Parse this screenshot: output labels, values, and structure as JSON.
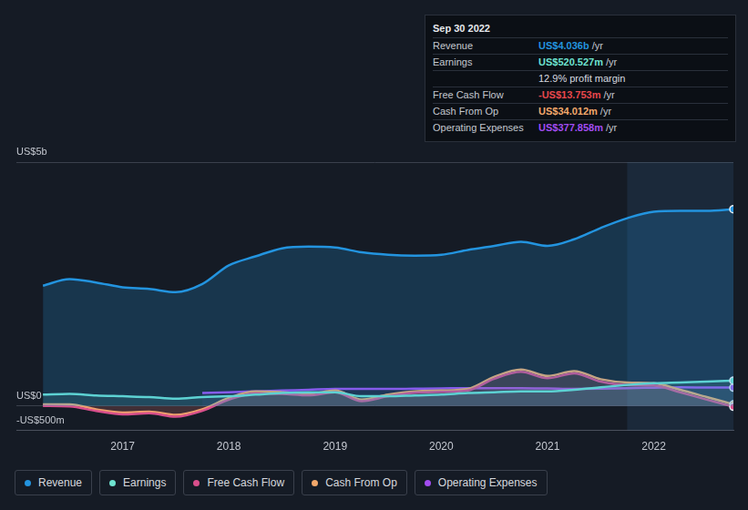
{
  "chart_data": {
    "type": "line",
    "x": [
      2016.25,
      2016.5,
      2016.75,
      2017,
      2017.25,
      2017.5,
      2017.75,
      2018,
      2018.25,
      2018.5,
      2018.75,
      2019,
      2019.25,
      2019.5,
      2019.75,
      2020,
      2020.25,
      2020.5,
      2020.75,
      2021,
      2021.25,
      2021.5,
      2021.75,
      2022,
      2022.25,
      2022.5,
      2022.75
    ],
    "xlim": [
      2016,
      2022.75
    ],
    "xticks": [
      2017,
      2018,
      2019,
      2020,
      2021,
      2022
    ],
    "ylim": [
      -500,
      5000
    ],
    "yticks": [
      {
        "value": 5000,
        "label": "US$5b"
      },
      {
        "value": 0,
        "label": "US$0"
      },
      {
        "value": -500,
        "label": "-US$500m"
      }
    ],
    "grid": true,
    "legend": "bottom",
    "highlight_x": [
      2021.75,
      2022.75
    ],
    "series": [
      {
        "name": "Revenue",
        "color": "#2394df",
        "values": [
          2467,
          2600,
          2533,
          2433,
          2400,
          2333,
          2500,
          2883,
          3067,
          3233,
          3267,
          3250,
          3150,
          3100,
          3083,
          3100,
          3200,
          3283,
          3367,
          3283,
          3417,
          3650,
          3850,
          3983,
          4000,
          4000,
          4036
        ]
      },
      {
        "name": "Earnings",
        "color": "#6ee3d0",
        "values": [
          233,
          250,
          217,
          200,
          183,
          150,
          183,
          200,
          233,
          267,
          283,
          283,
          200,
          200,
          217,
          233,
          267,
          283,
          300,
          300,
          333,
          383,
          433,
          467,
          483,
          500,
          521
        ]
      },
      {
        "name": "Free Cash Flow",
        "color": "#d94f8c",
        "values": [
          0,
          -10,
          -100,
          -170,
          -150,
          -220,
          -100,
          130,
          260,
          250,
          220,
          280,
          100,
          200,
          270,
          290,
          320,
          560,
          700,
          570,
          670,
          500,
          430,
          420,
          280,
          130,
          -14
        ]
      },
      {
        "name": "Cash From Op",
        "color": "#f2a86b",
        "values": [
          33,
          33,
          -67,
          -133,
          -117,
          -183,
          -67,
          167,
          300,
          283,
          250,
          317,
          133,
          233,
          300,
          317,
          350,
          600,
          750,
          617,
          717,
          550,
          483,
          467,
          333,
          183,
          34
        ]
      },
      {
        "name": "Operating Expenses",
        "color": "#a24cf0",
        "values": [
          null,
          null,
          null,
          null,
          null,
          null,
          267,
          283,
          300,
          317,
          333,
          350,
          350,
          350,
          355,
          360,
          367,
          367,
          367,
          360,
          350,
          355,
          367,
          375,
          383,
          380,
          378
        ]
      }
    ],
    "summary": {
      "date": "Sep 30 2022",
      "rows": [
        {
          "label": "Revenue",
          "value": "US$4.036b",
          "suffix": "/yr",
          "color": "#2394df"
        },
        {
          "label": "Earnings",
          "value": "US$520.527m",
          "suffix": "/yr",
          "color": "#6ee3d0"
        },
        {
          "text": "12.9% profit margin"
        },
        {
          "label": "Free Cash Flow",
          "value": "-US$13.753m",
          "suffix": "/yr",
          "color": "#e8474c"
        },
        {
          "label": "Cash From Op",
          "value": "US$34.012m",
          "suffix": "/yr",
          "color": "#f2a86b"
        },
        {
          "label": "Operating Expenses",
          "value": "US$377.858m",
          "suffix": "/yr",
          "color": "#a24cf0"
        }
      ]
    }
  }
}
